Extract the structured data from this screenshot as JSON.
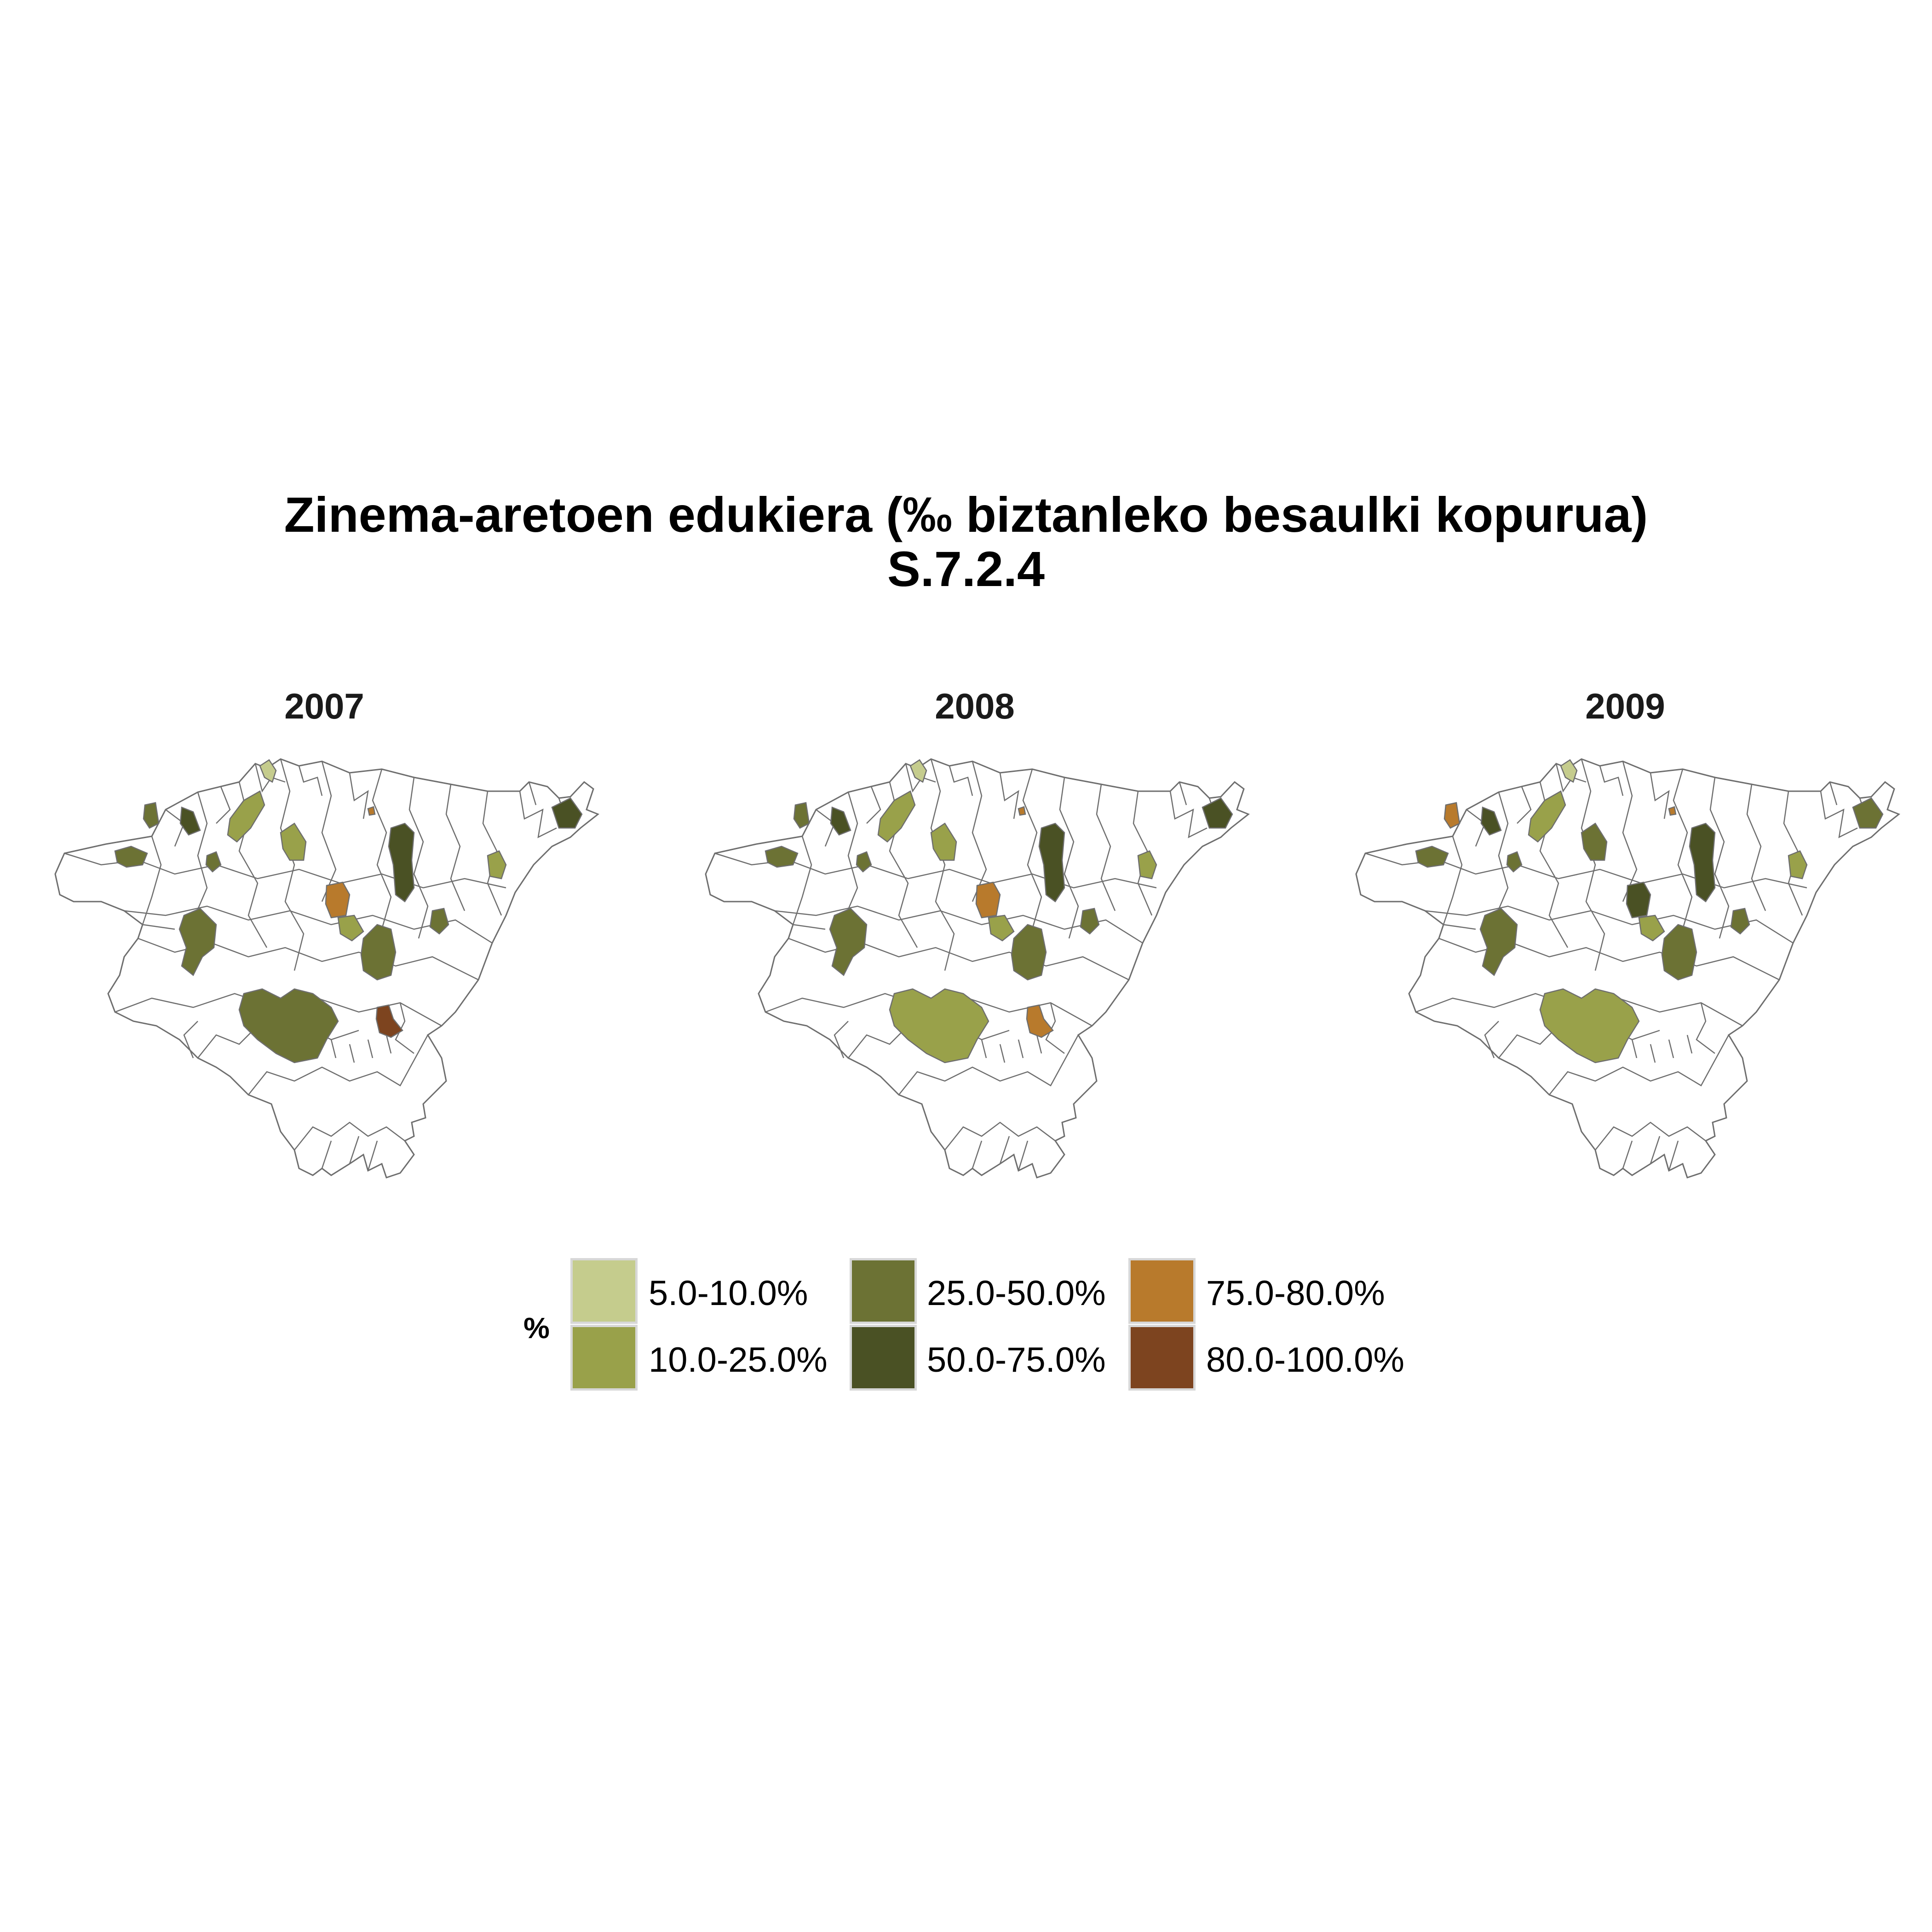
{
  "title": {
    "line1": "Zinema-aretoen edukiera (‰ biztanleko besaulki kopurua)",
    "line2": "S.7.2.4"
  },
  "legend": {
    "title": "%",
    "items": [
      {
        "label": "5.0-10.0%",
        "color": "#c5cc8d"
      },
      {
        "label": "10.0-25.0%",
        "color": "#99a14a"
      },
      {
        "label": "25.0-50.0%",
        "color": "#6c7234"
      },
      {
        "label": "50.0-75.0%",
        "color": "#4a5124"
      },
      {
        "label": "75.0-80.0%",
        "color": "#b87a2c"
      },
      {
        "label": "80.0-100.0%",
        "color": "#7d441f"
      }
    ]
  },
  "map_data": {
    "type": "choropleth",
    "region": "Gipuzkoa municipalities",
    "border_color": "#6e6e6e",
    "empty_fill": "#ffffff",
    "panels": [
      {
        "year": "2007",
        "highlighted": [
          {
            "area": "north-coast-small",
            "class": "5.0-10.0%"
          },
          {
            "area": "northwest-1",
            "class": "25.0-50.0%"
          },
          {
            "area": "northwest-2",
            "class": "50.0-75.0%"
          },
          {
            "area": "north-center-1",
            "class": "10.0-25.0%"
          },
          {
            "area": "north-center-2",
            "class": "10.0-25.0%"
          },
          {
            "area": "west",
            "class": "25.0-50.0%"
          },
          {
            "area": "center",
            "class": "75.0-80.0%"
          },
          {
            "area": "center-south",
            "class": "10.0-25.0%"
          },
          {
            "area": "east-center",
            "class": "50.0-75.0%"
          },
          {
            "area": "east-center-2",
            "class": "25.0-50.0%"
          },
          {
            "area": "northeast",
            "class": "50.0-75.0%"
          },
          {
            "area": "east-1",
            "class": "10.0-25.0%"
          },
          {
            "area": "east-2",
            "class": "25.0-50.0%"
          },
          {
            "area": "southwest",
            "class": "25.0-50.0%"
          },
          {
            "area": "center-2",
            "class": "25.0-50.0%"
          },
          {
            "area": "south-large",
            "class": "25.0-50.0%"
          },
          {
            "area": "south-east",
            "class": "80.0-100.0%"
          },
          {
            "area": "coast-dot",
            "class": "75.0-80.0%"
          }
        ]
      },
      {
        "year": "2008",
        "highlighted": [
          {
            "area": "north-coast-small",
            "class": "5.0-10.0%"
          },
          {
            "area": "northwest-1",
            "class": "25.0-50.0%"
          },
          {
            "area": "northwest-2",
            "class": "50.0-75.0%"
          },
          {
            "area": "north-center-1",
            "class": "10.0-25.0%"
          },
          {
            "area": "north-center-2",
            "class": "10.0-25.0%"
          },
          {
            "area": "west",
            "class": "25.0-50.0%"
          },
          {
            "area": "center",
            "class": "75.0-80.0%"
          },
          {
            "area": "center-south",
            "class": "10.0-25.0%"
          },
          {
            "area": "east-center",
            "class": "50.0-75.0%"
          },
          {
            "area": "east-center-2",
            "class": "25.0-50.0%"
          },
          {
            "area": "northeast",
            "class": "50.0-75.0%"
          },
          {
            "area": "east-1",
            "class": "10.0-25.0%"
          },
          {
            "area": "east-2",
            "class": "25.0-50.0%"
          },
          {
            "area": "southwest",
            "class": "25.0-50.0%"
          },
          {
            "area": "center-2",
            "class": "25.0-50.0%"
          },
          {
            "area": "south-large",
            "class": "10.0-25.0%"
          },
          {
            "area": "south-east",
            "class": "75.0-80.0%"
          },
          {
            "area": "coast-dot",
            "class": "75.0-80.0%"
          }
        ]
      },
      {
        "year": "2009",
        "highlighted": [
          {
            "area": "north-coast-small",
            "class": "5.0-10.0%"
          },
          {
            "area": "northwest-1",
            "class": "75.0-80.0%"
          },
          {
            "area": "northwest-2",
            "class": "50.0-75.0%"
          },
          {
            "area": "north-center-1",
            "class": "10.0-25.0%"
          },
          {
            "area": "north-center-2",
            "class": "25.0-50.0%"
          },
          {
            "area": "west",
            "class": "25.0-50.0%"
          },
          {
            "area": "center",
            "class": "50.0-75.0%"
          },
          {
            "area": "center-south",
            "class": "10.0-25.0%"
          },
          {
            "area": "east-center",
            "class": "50.0-75.0%"
          },
          {
            "area": "east-center-2",
            "class": "25.0-50.0%"
          },
          {
            "area": "northeast",
            "class": "25.0-50.0%"
          },
          {
            "area": "east-1",
            "class": "10.0-25.0%"
          },
          {
            "area": "east-2",
            "class": "25.0-50.0%"
          },
          {
            "area": "southwest",
            "class": "25.0-50.0%"
          },
          {
            "area": "center-2",
            "class": "25.0-50.0%"
          },
          {
            "area": "south-large",
            "class": "10.0-25.0%"
          },
          {
            "area": "coast-dot",
            "class": "75.0-80.0%"
          }
        ]
      }
    ]
  }
}
